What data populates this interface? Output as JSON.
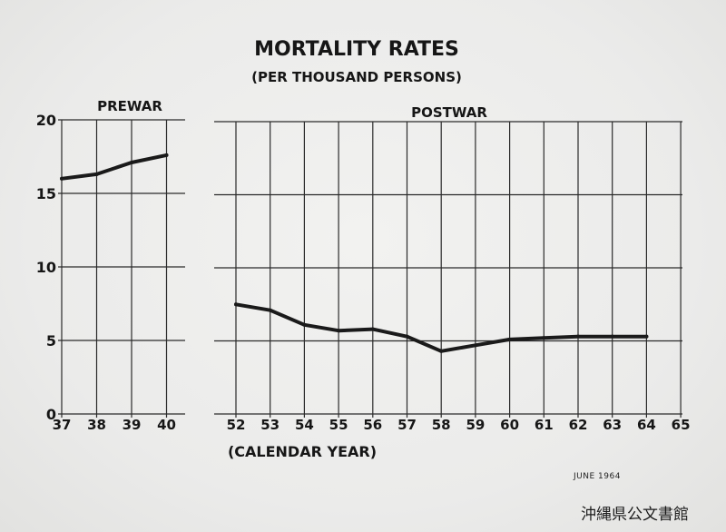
{
  "photo": {
    "date_stamp": "JUNE 1964",
    "archive_label": "沖縄県公文書館"
  },
  "chart_data": {
    "type": "line",
    "title": "MORTALITY RATES",
    "subtitle": "(PER THOUSAND PERSONS)",
    "xlabel": "(CALENDAR YEAR)",
    "ylabel": "",
    "ylim": [
      0,
      20
    ],
    "yticks": [
      0,
      5,
      10,
      15,
      20
    ],
    "grid": true,
    "line_color": "#1a1a1a",
    "panels": [
      {
        "label": "PREWAR",
        "xticks": [
          "37",
          "38",
          "39",
          "40"
        ],
        "x": [
          "37",
          "38",
          "39",
          "40"
        ],
        "values": [
          16.0,
          16.3,
          17.1,
          17.6
        ]
      },
      {
        "label": "POSTWAR",
        "xticks": [
          "52",
          "53",
          "54",
          "55",
          "56",
          "57",
          "58",
          "59",
          "60",
          "61",
          "62",
          "63",
          "64",
          "65"
        ],
        "x": [
          "52",
          "53",
          "54",
          "55",
          "56",
          "57",
          "58",
          "59",
          "60",
          "61",
          "62",
          "63",
          "64"
        ],
        "values": [
          7.5,
          7.1,
          6.1,
          5.7,
          5.8,
          5.3,
          4.3,
          4.7,
          5.1,
          5.2,
          5.3,
          5.3,
          5.3
        ]
      }
    ]
  }
}
